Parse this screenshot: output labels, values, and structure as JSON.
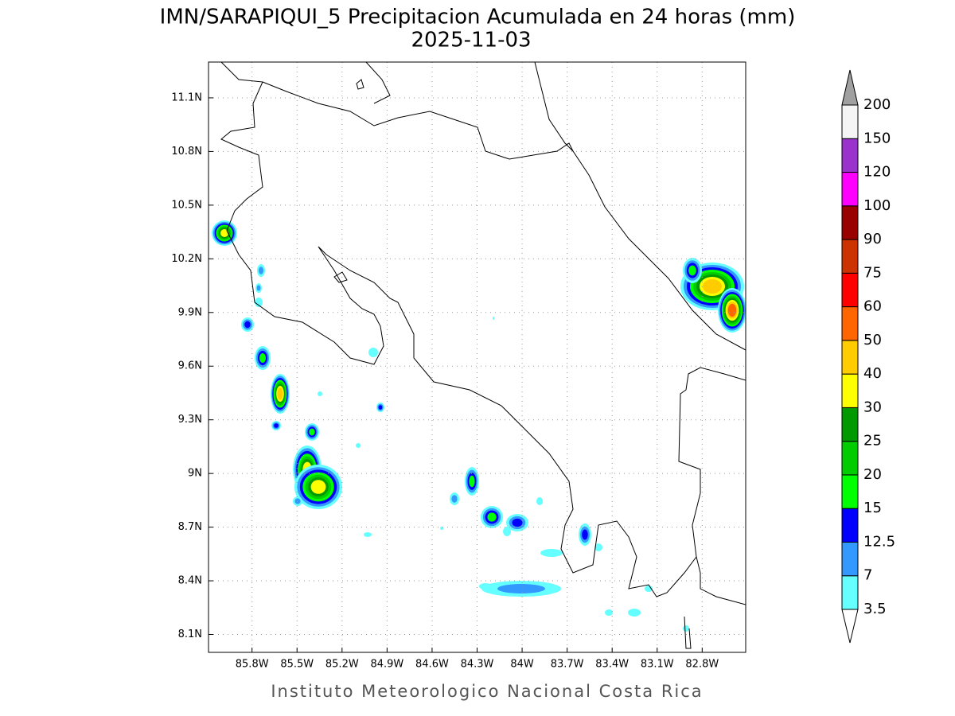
{
  "title": "IMN/SARAPIQUI_5 Precipitacion Acumulada en 24 horas (mm)",
  "subtitle": "2025-11-03",
  "footer": "Instituto Meteorologico Nacional Costa Rica",
  "map": {
    "xlim": [
      -86.09,
      -82.51
    ],
    "ylim": [
      8.0,
      11.3
    ],
    "grid": true,
    "xticks": [
      {
        "value": -85.8,
        "label": "85.8W"
      },
      {
        "value": -85.5,
        "label": "85.5W"
      },
      {
        "value": -85.2,
        "label": "85.2W"
      },
      {
        "value": -84.9,
        "label": "84.9W"
      },
      {
        "value": -84.6,
        "label": "84.6W"
      },
      {
        "value": -84.3,
        "label": "84.3W"
      },
      {
        "value": -84,
        "label": "84W"
      },
      {
        "value": -83.7,
        "label": "83.7W"
      },
      {
        "value": -83.4,
        "label": "83.4W"
      },
      {
        "value": -83.1,
        "label": "83.1W"
      },
      {
        "value": -82.8,
        "label": "82.8W"
      }
    ],
    "yticks": [
      {
        "value": 8.1,
        "label": "8.1N"
      },
      {
        "value": 8.4,
        "label": "8.4N"
      },
      {
        "value": 8.7,
        "label": "8.7N"
      },
      {
        "value": 9,
        "label": "9N"
      },
      {
        "value": 9.3,
        "label": "9.3N"
      },
      {
        "value": 9.6,
        "label": "9.6N"
      },
      {
        "value": 9.9,
        "label": "9.9N"
      },
      {
        "value": 10.2,
        "label": "10.2N"
      },
      {
        "value": 10.5,
        "label": "10.5N"
      },
      {
        "value": 10.8,
        "label": "10.8N"
      },
      {
        "value": 11.1,
        "label": "11.1N"
      }
    ]
  },
  "colorbar": {
    "levels": [
      3.5,
      7,
      12.5,
      15,
      20,
      25,
      30,
      40,
      50,
      60,
      75,
      90,
      100,
      120,
      150,
      200
    ],
    "colors": [
      "#66ffff",
      "#3399ff",
      "#0000ff",
      "#00ff00",
      "#00cc00",
      "#009900",
      "#ffff00",
      "#ffcc00",
      "#ff6600",
      "#ff0000",
      "#cc3300",
      "#990000",
      "#ff00ff",
      "#9933cc",
      "#f5f5f5"
    ],
    "below_color": "#ffffff",
    "above_color": "#a0a0a0"
  }
}
